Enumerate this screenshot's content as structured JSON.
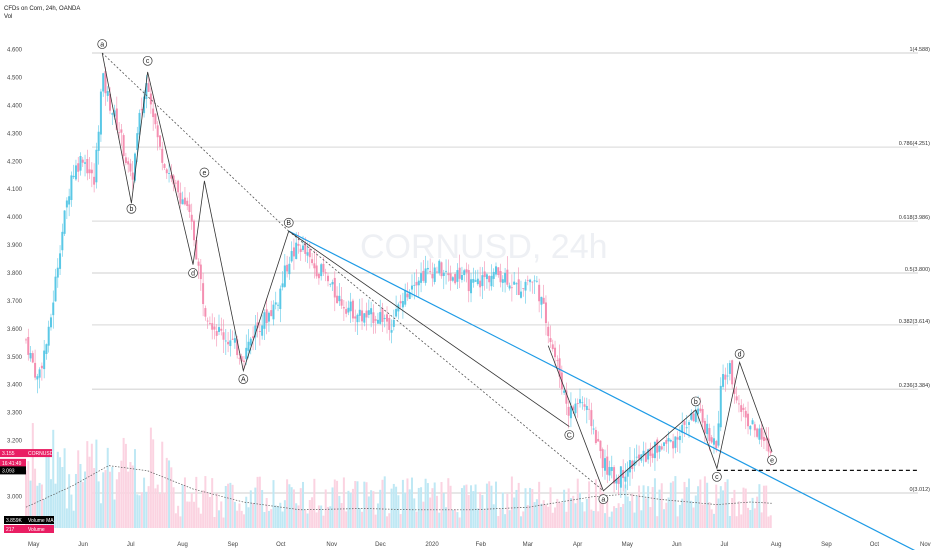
{
  "header": {
    "symbol_title": "CFDs on Corn, 24h, OANDA",
    "indicator": "Vol"
  },
  "watermark": "CORNUSD, 24h",
  "price_boxes": [
    {
      "text": "3.155",
      "sub": "CORNUSD",
      "price": 3.155,
      "color": "#e91e63"
    },
    {
      "text": "16:41:49",
      "price": 3.12,
      "color": "#e91e63"
    },
    {
      "text": "3.093",
      "price": 3.093,
      "color": "#000000"
    }
  ],
  "volume_legend": [
    {
      "text": "3.859K",
      "sub": "Volume MA",
      "color": "#000000"
    },
    {
      "text": "217",
      "sub": "Volume",
      "color": "#e91e63"
    }
  ],
  "colors": {
    "up": "#5ac8e6",
    "down": "#f48fb1",
    "trendline": "#1e9be6",
    "waves": "#333333",
    "fib": "#bfbfbf"
  },
  "chart_data": {
    "type": "candlestick",
    "y_ticks": [
      "3.000",
      "3.100",
      "3.200",
      "3.300",
      "3.400",
      "3.500",
      "3.600",
      "3.700",
      "3.800",
      "3.900",
      "4.000",
      "4.100",
      "4.200",
      "4.300",
      "4.400",
      "4.500",
      "4.600"
    ],
    "x_ticks": [
      "May",
      "Jun",
      "Jul",
      "Aug",
      "Sep",
      "Oct",
      "Nov",
      "Dec",
      "2020",
      "Feb",
      "Mar",
      "Apr",
      "May",
      "Jun",
      "Jul",
      "Aug",
      "Sep",
      "Oct",
      "Nov"
    ],
    "fib_levels": [
      {
        "label": "1(4.588)",
        "value": 4.588
      },
      {
        "label": "0.786(4.251)",
        "value": 4.251
      },
      {
        "label": "0.618(3.986)",
        "value": 3.986
      },
      {
        "label": "0.5(3.800)",
        "value": 3.8
      },
      {
        "label": "0.382(3.614)",
        "value": 3.614
      },
      {
        "label": "0.236(3.384)",
        "value": 3.384
      },
      {
        "label": "0(3.012)",
        "value": 3.012
      }
    ],
    "price_path": [
      [
        "2019-05-01",
        3.56
      ],
      [
        "2019-05-08",
        3.42
      ],
      [
        "2019-05-15",
        3.58
      ],
      [
        "2019-05-22",
        3.9
      ],
      [
        "2019-05-29",
        4.15
      ],
      [
        "2019-06-05",
        4.22
      ],
      [
        "2019-06-12",
        4.12
      ],
      [
        "2019-06-17",
        4.5
      ],
      [
        "2019-06-21",
        4.42
      ],
      [
        "2019-06-28",
        4.3
      ],
      [
        "2019-07-05",
        4.12
      ],
      [
        "2019-07-10",
        4.35
      ],
      [
        "2019-07-15",
        4.5
      ],
      [
        "2019-07-22",
        4.25
      ],
      [
        "2019-07-31",
        4.12
      ],
      [
        "2019-08-07",
        4.05
      ],
      [
        "2019-08-12",
        3.95
      ],
      [
        "2019-08-19",
        3.68
      ],
      [
        "2019-08-26",
        3.6
      ],
      [
        "2019-09-05",
        3.55
      ],
      [
        "2019-09-12",
        3.5
      ],
      [
        "2019-09-19",
        3.6
      ],
      [
        "2019-09-26",
        3.64
      ],
      [
        "2019-10-03",
        3.7
      ],
      [
        "2019-10-10",
        3.85
      ],
      [
        "2019-10-17",
        3.9
      ],
      [
        "2019-10-24",
        3.83
      ],
      [
        "2019-10-31",
        3.8
      ],
      [
        "2019-11-08",
        3.72
      ],
      [
        "2019-11-15",
        3.68
      ],
      [
        "2019-11-25",
        3.64
      ],
      [
        "2019-12-05",
        3.65
      ],
      [
        "2019-12-12",
        3.62
      ],
      [
        "2019-12-19",
        3.7
      ],
      [
        "2019-12-26",
        3.78
      ],
      [
        "2020-01-03",
        3.8
      ],
      [
        "2020-01-10",
        3.82
      ],
      [
        "2020-01-17",
        3.78
      ],
      [
        "2020-01-24",
        3.8
      ],
      [
        "2020-01-31",
        3.75
      ],
      [
        "2020-02-07",
        3.78
      ],
      [
        "2020-02-14",
        3.8
      ],
      [
        "2020-02-21",
        3.79
      ],
      [
        "2020-02-28",
        3.74
      ],
      [
        "2020-03-06",
        3.78
      ],
      [
        "2020-03-11",
        3.76
      ],
      [
        "2020-03-18",
        3.6
      ],
      [
        "2020-03-23",
        3.48
      ],
      [
        "2020-03-31",
        3.3
      ],
      [
        "2020-04-07",
        3.35
      ],
      [
        "2020-04-14",
        3.26
      ],
      [
        "2020-04-21",
        3.12
      ],
      [
        "2020-04-28",
        3.06
      ],
      [
        "2020-05-05",
        3.1
      ],
      [
        "2020-05-12",
        3.13
      ],
      [
        "2020-05-19",
        3.15
      ],
      [
        "2020-05-26",
        3.18
      ],
      [
        "2020-06-03",
        3.2
      ],
      [
        "2020-06-10",
        3.25
      ],
      [
        "2020-06-17",
        3.3
      ],
      [
        "2020-06-24",
        3.24
      ],
      [
        "2020-06-30",
        3.17
      ],
      [
        "2020-07-03",
        3.42
      ],
      [
        "2020-07-08",
        3.45
      ],
      [
        "2020-07-14",
        3.32
      ],
      [
        "2020-07-21",
        3.26
      ],
      [
        "2020-07-28",
        3.2
      ],
      [
        "2020-08-03",
        3.155
      ]
    ],
    "volume_ma": [
      [
        "2019-05-01",
        0.8
      ],
      [
        "2019-05-29",
        1.6
      ],
      [
        "2019-06-21",
        2.4
      ],
      [
        "2019-07-15",
        2.2
      ],
      [
        "2019-08-12",
        1.5
      ],
      [
        "2019-09-12",
        1.0
      ],
      [
        "2019-10-17",
        0.7
      ],
      [
        "2019-11-25",
        0.75
      ],
      [
        "2019-12-26",
        0.7
      ],
      [
        "2020-01-31",
        0.7
      ],
      [
        "2020-03-06",
        0.8
      ],
      [
        "2020-04-14",
        1.2
      ],
      [
        "2020-05-05",
        1.3
      ],
      [
        "2020-05-26",
        1.1
      ],
      [
        "2020-06-30",
        0.9
      ],
      [
        "2020-07-21",
        1.0
      ],
      [
        "2020-08-03",
        0.95
      ]
    ],
    "trendline": {
      "p1": [
        "2019-10-10",
        3.95
      ],
      "p2": [
        "2020-11-01",
        2.8
      ]
    },
    "support_line": {
      "y": 3.093,
      "from": "2020-06-30",
      "to": "2020-11-01"
    },
    "dotted_lines": [
      [
        [
          "2019-06-17",
          4.588
        ],
        [
          "2019-10-10",
          3.95
        ]
      ],
      [
        [
          "2019-10-10",
          3.95
        ],
        [
          "2020-04-21",
          3.02
        ]
      ]
    ],
    "wave_paths": [
      [
        [
          "2019-06-17",
          4.588
        ],
        [
          "2019-07-05",
          4.05
        ],
        [
          "2019-07-15",
          4.52
        ],
        [
          "2019-08-12",
          3.83
        ],
        [
          "2019-08-19",
          4.13
        ],
        [
          "2019-09-12",
          3.45
        ],
        [
          "2019-10-10",
          3.95
        ]
      ],
      [
        [
          "2019-10-10",
          3.95
        ],
        [
          "2020-03-31",
          3.25
        ]
      ],
      [
        [
          "2020-03-18",
          3.54
        ],
        [
          "2020-04-21",
          3.02
        ],
        [
          "2020-06-17",
          3.31
        ],
        [
          "2020-06-30",
          3.1
        ],
        [
          "2020-07-14",
          3.48
        ],
        [
          "2020-08-03",
          3.16
        ]
      ]
    ],
    "wave_labels": [
      {
        "text": "a",
        "pos": [
          "2019-06-17",
          4.62
        ]
      },
      {
        "text": "b",
        "pos": [
          "2019-07-05",
          4.03
        ]
      },
      {
        "text": "c",
        "pos": [
          "2019-07-15",
          4.56
        ]
      },
      {
        "text": "d",
        "pos": [
          "2019-08-12",
          3.8
        ]
      },
      {
        "text": "e",
        "pos": [
          "2019-08-19",
          4.16
        ]
      },
      {
        "text": "A",
        "pos": [
          "2019-09-12",
          3.42
        ]
      },
      {
        "text": "B",
        "pos": [
          "2019-10-10",
          3.98
        ]
      },
      {
        "text": "C",
        "pos": [
          "2020-03-31",
          3.22
        ]
      },
      {
        "text": "a",
        "pos": [
          "2020-04-21",
          2.99
        ]
      },
      {
        "text": "b",
        "pos": [
          "2020-06-17",
          3.34
        ]
      },
      {
        "text": "c",
        "pos": [
          "2020-06-30",
          3.07
        ]
      },
      {
        "text": "d",
        "pos": [
          "2020-07-14",
          3.51
        ]
      },
      {
        "text": "e",
        "pos": [
          "2020-08-03",
          3.13
        ]
      }
    ]
  }
}
